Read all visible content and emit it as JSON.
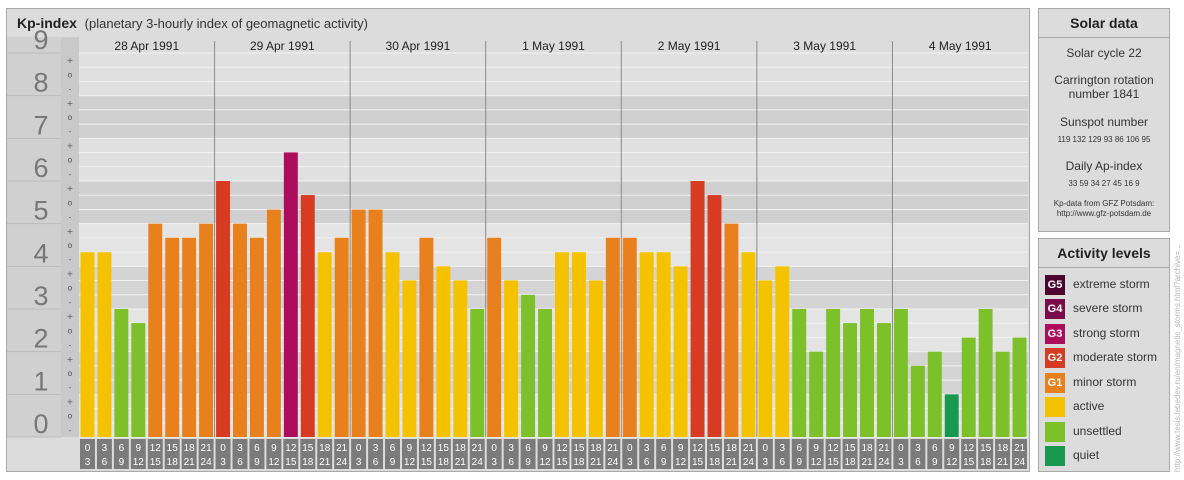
{
  "header": {
    "title": "Kp-index",
    "subtitle": "(planetary 3-hourly index of geomagnetic activity)"
  },
  "chart_data": {
    "type": "bar",
    "ylim": [
      0,
      9
    ],
    "y_ticks": [
      "0",
      "1",
      "2",
      "3",
      "4",
      "5",
      "6",
      "7",
      "8",
      "9"
    ],
    "minor_ticks": [
      "+",
      "o",
      "-"
    ],
    "days": [
      "28 Apr 1991",
      "29 Apr 1991",
      "30 Apr 1991",
      "1 May 1991",
      "2 May 1991",
      "3 May 1991",
      "4 May 1991"
    ],
    "interval_labels": [
      [
        "0",
        "3"
      ],
      [
        "3",
        "6"
      ],
      [
        "6",
        "9"
      ],
      [
        "9",
        "12"
      ],
      [
        "12",
        "15"
      ],
      [
        "15",
        "18"
      ],
      [
        "18",
        "21"
      ],
      [
        "21",
        "24"
      ]
    ],
    "values": [
      4.33,
      4.33,
      3.0,
      2.67,
      5.0,
      4.67,
      4.67,
      5.0,
      6.0,
      5.0,
      4.67,
      5.33,
      6.67,
      5.67,
      4.33,
      4.67,
      5.33,
      5.33,
      4.33,
      3.67,
      4.67,
      4.0,
      3.67,
      3.0,
      4.67,
      3.67,
      3.33,
      3.0,
      4.33,
      4.33,
      3.67,
      4.67,
      4.67,
      4.33,
      4.33,
      4.0,
      6.0,
      5.67,
      5.0,
      4.33,
      3.67,
      4.0,
      3.0,
      2.0,
      3.0,
      2.67,
      3.0,
      2.67,
      3.0,
      1.67,
      2.0,
      1.0,
      2.33,
      3.0,
      2.0,
      2.33
    ],
    "colors": {
      "quiet": "#1a9850",
      "unsettled": "#7cc12a",
      "active": "#f5c200",
      "minor": "#e8801e",
      "moderate": "#d73c22",
      "strong": "#ab0d5c",
      "severe": "#7a0b4a",
      "extreme": "#4d0530"
    }
  },
  "solar": {
    "title": "Solar data",
    "cycle": "Solar cycle 22",
    "carrington_line1": "Carrington rotation",
    "carrington_line2": "number 1841",
    "sunspot_title": "Sunspot number",
    "sunspot_values": "119 132 129 93 86 106 95",
    "ap_title": "Daily Ap-index",
    "ap_values": "33 59 34 27 45 16 9",
    "source_line1": "Kp-data from GFZ Potsdam:",
    "source_line2": "http://www.gfz-potsdam.de"
  },
  "activity": {
    "title": "Activity levels",
    "items": [
      {
        "code": "G5",
        "label": "extreme storm",
        "color": "#4d0530"
      },
      {
        "code": "G4",
        "label": "severe storm",
        "color": "#7a0b4a"
      },
      {
        "code": "G3",
        "label": "strong storm",
        "color": "#ab0d5c"
      },
      {
        "code": "G2",
        "label": "moderate storm",
        "color": "#d73c22"
      },
      {
        "code": "G1",
        "label": "minor storm",
        "color": "#e8801e"
      },
      {
        "code": "",
        "label": "active",
        "color": "#f5c200"
      },
      {
        "code": "",
        "label": "unsettled",
        "color": "#7cc12a"
      },
      {
        "code": "",
        "label": "quiet",
        "color": "#1a9850"
      }
    ]
  },
  "credit": "http://www.tesis.lebedev.ru/en/magnetic_storms.html?archive=..."
}
